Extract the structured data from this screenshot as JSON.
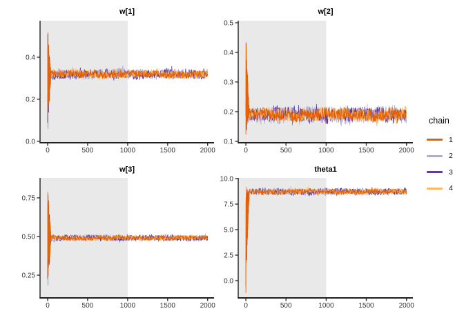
{
  "figure": {
    "background": "#ffffff",
    "warmup_fill": "#e9e9e9",
    "axis_color": "#1f1f1f",
    "tick_color": "#333333",
    "tick_label_color": "#303030",
    "title_color": "#000000"
  },
  "legend": {
    "title": "chain",
    "items": [
      {
        "label": "1",
        "color": "#e66101"
      },
      {
        "label": "2",
        "color": "#b2abd2"
      },
      {
        "label": "3",
        "color": "#5e3c99"
      },
      {
        "label": "4",
        "color": "#fdb863"
      }
    ]
  },
  "chart_data": [
    {
      "type": "line",
      "title": "w[1]",
      "xlabel": "",
      "ylabel": "",
      "n_iterations": 2000,
      "warmup_iterations": 1000,
      "x": {
        "ticks": [
          0,
          500,
          1000,
          1500,
          2000
        ],
        "lim": [
          -95,
          2080
        ]
      },
      "y": {
        "ticks": [
          {
            "v": 0.0,
            "label": "0.0"
          },
          {
            "v": 0.2,
            "label": "0.2"
          },
          {
            "v": 0.4,
            "label": "0.4"
          }
        ],
        "lim": [
          -0.007,
          0.574
        ]
      },
      "stationary": {
        "mean": 0.32,
        "half_band": 0.022
      },
      "warmup_spike": {
        "high": 0.555,
        "low": 0.02
      },
      "chains": [
        "1",
        "2",
        "3",
        "4"
      ]
    },
    {
      "type": "line",
      "title": "w[2]",
      "xlabel": "",
      "ylabel": "",
      "n_iterations": 2000,
      "warmup_iterations": 1000,
      "x": {
        "ticks": [
          0,
          500,
          1000,
          1500,
          2000
        ],
        "lim": [
          -95,
          2080
        ]
      },
      "y": {
        "ticks": [
          {
            "v": 0.1,
            "label": "0.1"
          },
          {
            "v": 0.2,
            "label": "0.2"
          },
          {
            "v": 0.3,
            "label": "0.3"
          },
          {
            "v": 0.4,
            "label": "0.4"
          },
          {
            "v": 0.5,
            "label": "0.5"
          }
        ],
        "lim": [
          0.095,
          0.507
        ]
      },
      "stationary": {
        "mean": 0.19,
        "half_band": 0.026
      },
      "warmup_spike": {
        "high": 0.487,
        "low": 0.113
      },
      "chains": [
        "1",
        "2",
        "3",
        "4"
      ]
    },
    {
      "type": "line",
      "title": "w[3]",
      "xlabel": "",
      "ylabel": "",
      "n_iterations": 2000,
      "warmup_iterations": 1000,
      "x": {
        "ticks": [
          0,
          500,
          1000,
          1500,
          2000
        ],
        "lim": [
          -95,
          2080
        ]
      },
      "y": {
        "ticks": [
          {
            "v": 0.25,
            "label": "0.25"
          },
          {
            "v": 0.5,
            "label": "0.50"
          },
          {
            "v": 0.75,
            "label": "0.75"
          }
        ],
        "lim": [
          0.103,
          0.879
        ]
      },
      "stationary": {
        "mean": 0.491,
        "half_band": 0.019
      },
      "warmup_spike": {
        "high": 0.87,
        "low": 0.115
      },
      "chains": [
        "1",
        "2",
        "3",
        "4"
      ]
    },
    {
      "type": "line",
      "title": "theta1",
      "xlabel": "",
      "ylabel": "",
      "n_iterations": 2000,
      "warmup_iterations": 1000,
      "x": {
        "ticks": [
          0,
          500,
          1000,
          1500,
          2000
        ],
        "lim": [
          -95,
          2080
        ]
      },
      "y": {
        "ticks": [
          {
            "v": 0.0,
            "label": "0.0"
          },
          {
            "v": 2.5,
            "label": "2.5"
          },
          {
            "v": 5.0,
            "label": "5.0"
          },
          {
            "v": 7.5,
            "label": "7.5"
          },
          {
            "v": 10.0,
            "label": "10.0"
          }
        ],
        "lim": [
          -1.69,
          10.07
        ]
      },
      "stationary": {
        "mean": 8.72,
        "half_band": 0.32
      },
      "warmup_spike": {
        "high": 9.62,
        "low": -1.28
      },
      "chains": [
        "1",
        "2",
        "3",
        "4"
      ]
    }
  ]
}
